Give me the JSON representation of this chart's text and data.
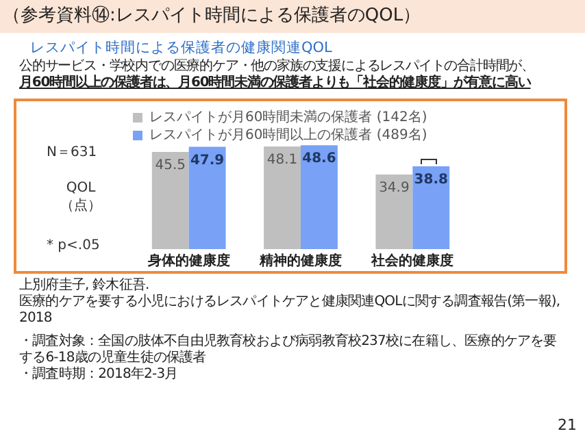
{
  "chart_data": {
    "type": "bar",
    "title": "（参考資料⑭:レスパイト時間による保護者のQOL）",
    "subtitle": "レスパイト時間による保護者の健康関連QOL",
    "ylabel": "QOL\n（点）",
    "categories": [
      "身体的健康度",
      "精神的健康度",
      "社会的健康度"
    ],
    "series": [
      {
        "name": "レスパイトが月60時間未満の保護者 (142名)",
        "color": "#bfbfbf",
        "values": [
          45.5,
          48.1,
          34.9
        ]
      },
      {
        "name": "レスパイトが月60時間以上の保護者 (489名)",
        "color": "#79a2f6",
        "values": [
          47.9,
          48.6,
          38.8
        ]
      }
    ],
    "data_labels": true,
    "legend": "top left",
    "annotations": [
      "公的サービス・学校内での医療的ケア・他の家族の支援によるレスパイトの合計時間が、",
      "月60時間以上の保護者は、月60時間未満の保護者よりも「社会的健康度」が有意に高い",
      "N＝631",
      "* p<.05",
      "上別府圭子, 鈴木征吾.",
      "医療的ケアを要する小児におけるレスパイトケアと健康関連QOLに関する調査報告(第一報), 2018",
      "・調査対象：全国の肢体不自由児教育校および病弱教育校237校に在籍し、医療的ケアを要する6-18歳の児童生徒の保護者",
      "・調査時期：2018年2-3月",
      "21"
    ]
  }
}
